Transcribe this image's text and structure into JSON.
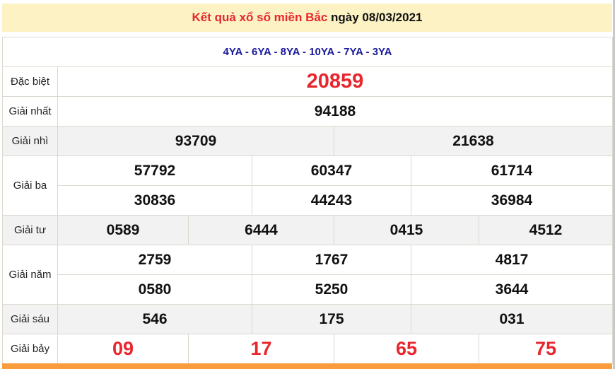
{
  "header": {
    "title_red": "Kết quả xổ số miền Bắc",
    "title_date": "ngày 08/03/2021"
  },
  "codes": "4YA - 6YA - 8YA - 10YA - 7YA - 3YA",
  "prizes": {
    "db": {
      "label": "Đặc biệt",
      "values": [
        "20859"
      ]
    },
    "g1": {
      "label": "Giải nhất",
      "values": [
        "94188"
      ]
    },
    "g2": {
      "label": "Giải nhì",
      "values": [
        "93709",
        "21638"
      ]
    },
    "g3": {
      "label": "Giải ba",
      "values": [
        "57792",
        "60347",
        "61714",
        "30836",
        "44243",
        "36984"
      ]
    },
    "g4": {
      "label": "Giải tư",
      "values": [
        "0589",
        "6444",
        "0415",
        "4512"
      ]
    },
    "g5": {
      "label": "Giải năm",
      "values": [
        "2759",
        "1767",
        "4817",
        "0580",
        "5250",
        "3644"
      ]
    },
    "g6": {
      "label": "Giải sáu",
      "values": [
        "546",
        "175",
        "031"
      ]
    },
    "g7": {
      "label": "Giải bảy",
      "values": [
        "09",
        "17",
        "65",
        "75"
      ]
    }
  },
  "colors": {
    "header_bg": "#fdf2c4",
    "red": "#e8262e",
    "code_blue": "#1a1a9c",
    "alt_row": "#f2f2f2",
    "bottom_bar": "#f89c3e"
  }
}
